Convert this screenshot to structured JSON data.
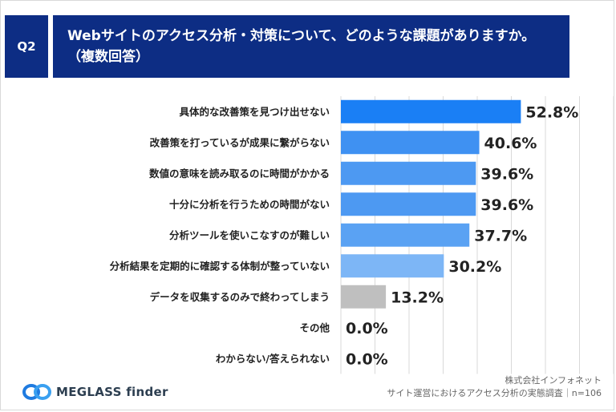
{
  "question": {
    "badge": "Q2",
    "title": "Webサイトのアクセス分析・対策について、どのような課題がありますか。（複数回答）"
  },
  "chart_data": {
    "type": "bar",
    "orientation": "horizontal",
    "title": "Webサイトのアクセス分析・対策について、どのような課題がありますか。（複数回答）",
    "unit": "%",
    "xlim": [
      0,
      100
    ],
    "categories": [
      "具体的な改善策を見つけ出せない",
      "改善策を打っているが成果に繋がらない",
      "数値の意味を読み取るのに時間がかかる",
      "十分に分析を行うための時間がない",
      "分析ツールを使いこなすのが難しい",
      "分析結果を定期的に確認する体制が整っていない",
      "データを収集するのみで終わってしまう",
      "その他",
      "わからない/答えられない"
    ],
    "values": [
      52.8,
      40.6,
      39.6,
      39.6,
      37.7,
      30.2,
      13.2,
      0.0,
      0.0
    ],
    "value_labels": [
      "52.8%",
      "40.6%",
      "39.6%",
      "39.6%",
      "37.7%",
      "30.2%",
      "13.2%",
      "0.0%",
      "0.0%"
    ],
    "bar_colors": [
      "#1a7ff5",
      "#3f91f2",
      "#4d99f2",
      "#4d99f2",
      "#5aa2f3",
      "#7db6f6",
      "#bfbfbf",
      "#bfbfbf",
      "#bfbfbf"
    ],
    "grid": true
  },
  "logo": {
    "name": "MEGLASS finder"
  },
  "footer": {
    "company": "株式会社インフォネット",
    "survey": "サイト運営におけるアクセス分析の実態調査｜n=106"
  }
}
